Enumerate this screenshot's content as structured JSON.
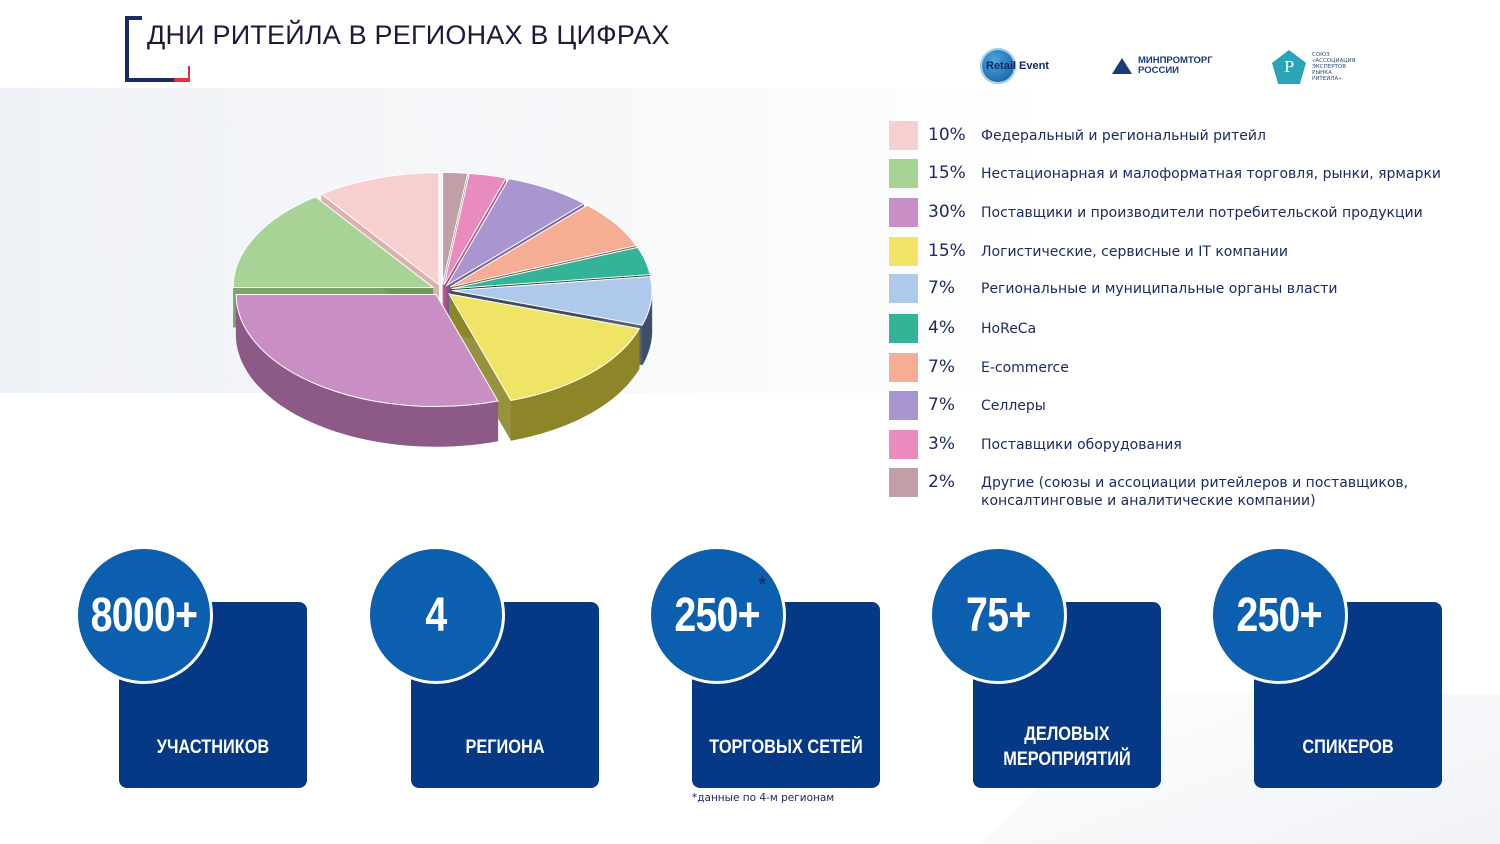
{
  "title": "ДНИ РИТЕЙЛА В РЕГИОНАХ В ЦИФРАХ",
  "logos": {
    "retail_event": "Retail Event",
    "minpromtorg": "МИНПРОМТОРГ РОССИИ",
    "association": "Союз «Ассоциация экспертов рынка ритейла»"
  },
  "chart_data": {
    "type": "pie",
    "title": "",
    "slices": [
      {
        "label": "Федеральный и региональный ритейл",
        "percent_label": "10%",
        "value": 10,
        "color": "#f7cfcf",
        "side": "#d8a9a9"
      },
      {
        "label": "Нестационарная и малоформатная торговля, рынки, ярмарки",
        "percent_label": "15%",
        "value": 15,
        "color": "#a9d396",
        "side": "#6f9a5c"
      },
      {
        "label": "Поставщики и производители потребительской продукции",
        "percent_label": "30%",
        "value": 30,
        "color": "#c98fc4",
        "side": "#8d5a88"
      },
      {
        "label": "Логистические, сервисные и IT компании",
        "percent_label": "15%",
        "value": 15,
        "color": "#efe466",
        "side": "#8c8628"
      },
      {
        "label": "Региональные и муниципальные органы власти",
        "percent_label": "7%",
        "value": 7,
        "color": "#aec9ec",
        "side": "#3f4d66"
      },
      {
        "label": "HoReCa",
        "percent_label": "4%",
        "value": 4,
        "color": "#33b397",
        "side": "#0d3d31"
      },
      {
        "label": "E-commerce",
        "percent_label": "7%",
        "value": 7,
        "color": "#f5ad93",
        "side": "#874d38"
      },
      {
        "label": "Селлеры",
        "percent_label": "7%",
        "value": 7,
        "color": "#a995cf",
        "side": "#6b5a96"
      },
      {
        "label": "Поставщики оборудования",
        "percent_label": "3%",
        "value": 3,
        "color": "#e98bbd",
        "side": "#b54f86"
      },
      {
        "label": "Другие (союзы и ассоциации ритейлеров и поставщиков, консалтинговые и аналитические компании)",
        "percent_label": "2%",
        "value": 2,
        "color": "#c19fa6",
        "side": "#8d6f75"
      }
    ]
  },
  "stats": [
    {
      "value": "8000+",
      "label": "УЧАСТНИКОВ"
    },
    {
      "value": "4",
      "label": "РЕГИОНА"
    },
    {
      "value": "250+",
      "label": "ТОРГОВЫХ СЕТЕЙ",
      "marker": "*"
    },
    {
      "value": "75+",
      "label": "ДЕЛОВЫХ\nМЕРОПРИЯТИЙ"
    },
    {
      "value": "250+",
      "label": "СПИКЕРОВ"
    }
  ],
  "footnote": "*данные по 4-м регионам"
}
